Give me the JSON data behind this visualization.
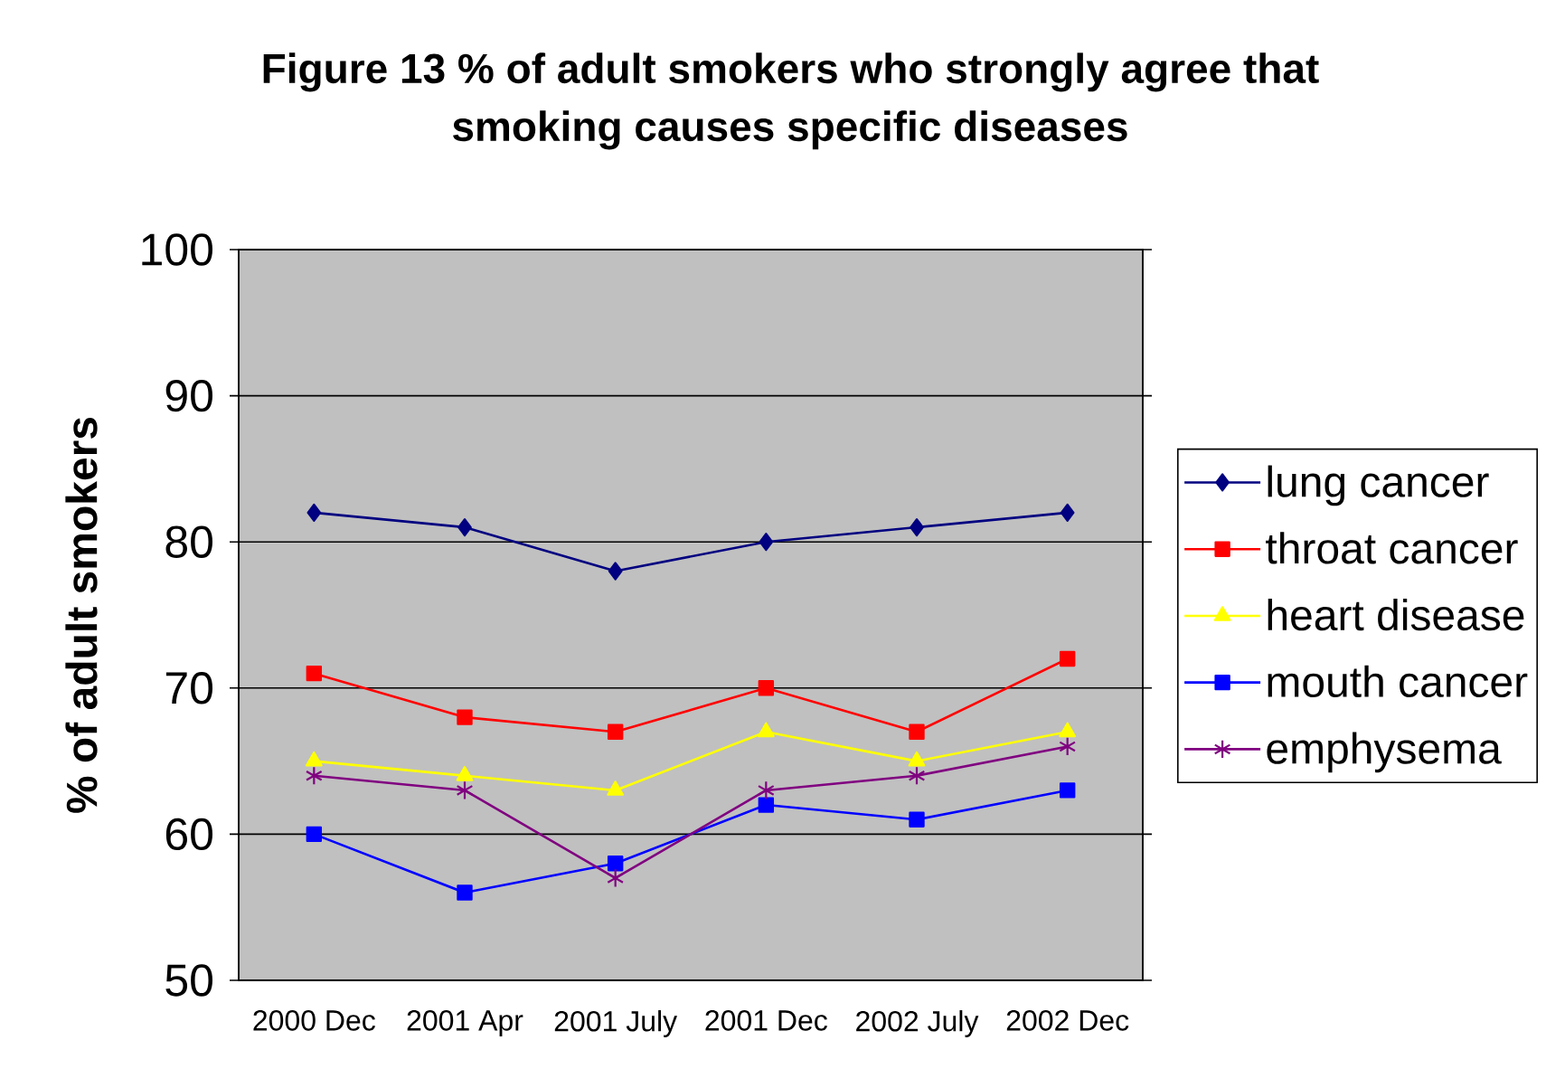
{
  "chart_data": {
    "type": "line",
    "title": "Figure 13 % of adult smokers who strongly agree that smoking causes specific diseases",
    "ylabel": "% of adult smokers",
    "categories": [
      "2000 Dec",
      "2001 Apr",
      "2001 July",
      "2001 Dec",
      "2002 July",
      "2002 Dec"
    ],
    "series": [
      {
        "name": "lung cancer",
        "color": "#000080",
        "marker": "diamond",
        "values": [
          82,
          81,
          78,
          80,
          81,
          82
        ]
      },
      {
        "name": "throat cancer",
        "color": "#ff0000",
        "marker": "square",
        "values": [
          71,
          68,
          67,
          70,
          67,
          72
        ]
      },
      {
        "name": "heart disease",
        "color": "#ffff00",
        "marker": "triangle",
        "values": [
          65,
          64,
          63,
          67,
          65,
          67
        ]
      },
      {
        "name": "mouth cancer",
        "color": "#0000ff",
        "marker": "square",
        "values": [
          60,
          56,
          58,
          62,
          61,
          63
        ]
      },
      {
        "name": "emphysema",
        "color": "#800080",
        "marker": "cross",
        "values": [
          64,
          63,
          57,
          63,
          64,
          66
        ]
      }
    ],
    "ylim": [
      50,
      100
    ],
    "yticks": [
      50,
      60,
      70,
      80,
      90,
      100
    ],
    "grid": "y",
    "legend": "right",
    "line_style": "solid"
  }
}
